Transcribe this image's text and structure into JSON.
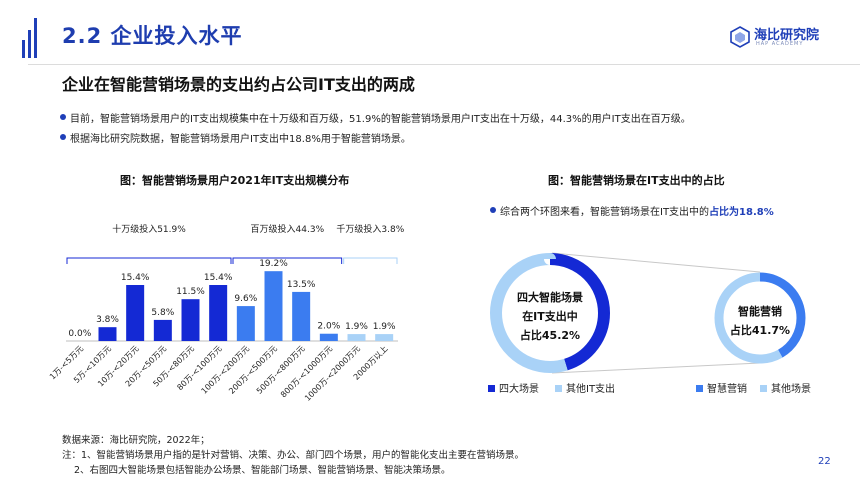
{
  "section_title": "2.2 企业投入水平",
  "logo": {
    "name": "海比研究院",
    "sub": "HAP ACADEMY"
  },
  "headline": "企业在智能营销场景的支出约占公司IT支出的两成",
  "bullets": [
    "目前，智能营销场景用户的IT支出规模集中在十万级和百万级，51.9%的智能营销场景用户IT支出在十万级，44.3%的用户IT支出在百万级。",
    "根据海比研究院数据，智能营销场景用户IT支出中18.8%用于智能营销场景。"
  ],
  "left_title": "图：智能营销场景用户2021年IT支出规模分布",
  "right_title": "图：智能营销场景在IT支出中的占比",
  "insight": {
    "prefix": "综合两个环图来看，智能营销场景在IT支出中的",
    "highlight": "占比为18.8%"
  },
  "colors": {
    "dark": "#1429d4",
    "mid": "#3b7cf0",
    "light": "#a9d2f7",
    "bracket": "#1429d4",
    "bracket_light": "#a9d2f7"
  },
  "chart_data": [
    {
      "type": "bar",
      "title": "图：智能营销场景用户2021年IT支出规模分布",
      "categories": [
        "1万-<5万元",
        "5万-<10万元",
        "10万-<20万元",
        "20万-<50万元",
        "50万-<80万元",
        "80万-<100万元",
        "100万-<200万元",
        "200万-<500万元",
        "500万-<800万元",
        "800万-<1000万元",
        "1000万-<2000万元",
        "2000万以上"
      ],
      "values": [
        0.0,
        3.8,
        15.4,
        5.8,
        11.5,
        15.4,
        9.6,
        19.2,
        13.5,
        2.0,
        1.9,
        1.9
      ],
      "value_labels": [
        "0.0%",
        "3.8%",
        "15.4%",
        "5.8%",
        "11.5%",
        "15.4%",
        "9.6%",
        "19.2%",
        "13.5%",
        "2.0%",
        "1.9%",
        "1.9%"
      ],
      "groups": [
        {
          "label": "十万级投入51.9%",
          "from": 0,
          "to": 5,
          "color": "dark"
        },
        {
          "label": "百万级投入44.3%",
          "from": 6,
          "to": 9,
          "color": "mid"
        },
        {
          "label": "千万级投入3.8%",
          "from": 10,
          "to": 11,
          "color": "light"
        }
      ],
      "ylim": [
        0,
        22
      ]
    },
    {
      "type": "pie",
      "center_label": [
        "四大智能场景",
        "在IT支出中",
        "占比45.2%"
      ],
      "slices": [
        {
          "name": "四大场景",
          "value": 45.2,
          "color": "#1429d4"
        },
        {
          "name": "其他IT支出",
          "value": 54.8,
          "color": "#a9d2f7"
        }
      ]
    },
    {
      "type": "pie",
      "center_label": [
        "智能营销",
        "占比41.7%"
      ],
      "slices": [
        {
          "name": "智慧营销",
          "value": 41.7,
          "color": "#3b7cf0"
        },
        {
          "name": "其他场景",
          "value": 58.3,
          "color": "#a9d2f7"
        }
      ]
    }
  ],
  "notes": [
    "数据来源：海比研究院，2022年；",
    "注：1、智能营销场景用户指的是针对营销、决策、办公、部门四个场景，用户的智能化支出主要在营销场景。",
    "2、右图四大智能场景包括智能办公场景、智能部门场景、智能营销场景、智能决策场景。"
  ],
  "page_number": "22"
}
